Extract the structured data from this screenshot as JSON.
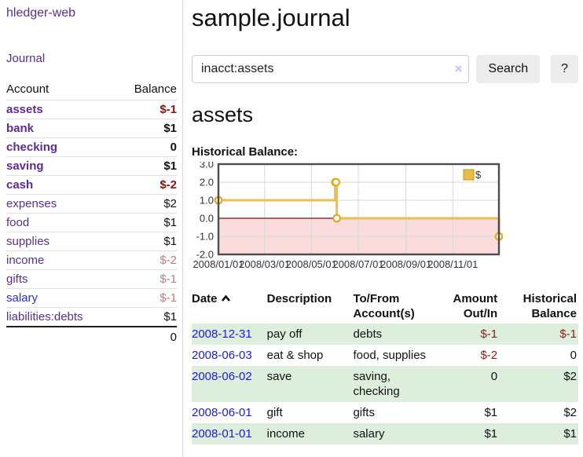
{
  "sidebar": {
    "app_title": "hledger-web",
    "journal_label": "Journal",
    "table": {
      "account_header": "Account",
      "balance_header": "Balance",
      "rows": [
        {
          "account": "assets",
          "balance": "$-1",
          "depth": 1,
          "bold": true,
          "balance_tone": "neg-strong",
          "link_tone": "purple"
        },
        {
          "account": "bank",
          "balance": "$1",
          "depth": 2,
          "bold": true,
          "balance_tone": "normal",
          "link_tone": "purple"
        },
        {
          "account": "checking",
          "balance": "0",
          "depth": 3,
          "bold": true,
          "balance_tone": "normal",
          "link_tone": "purple"
        },
        {
          "account": "saving",
          "balance": "$1",
          "depth": 3,
          "bold": true,
          "balance_tone": "normal",
          "link_tone": "purple"
        },
        {
          "account": "cash",
          "balance": "$-2",
          "depth": 2,
          "bold": true,
          "balance_tone": "neg-strong",
          "link_tone": "purple"
        },
        {
          "account": "expenses",
          "balance": "$2",
          "depth": 1,
          "bold": false,
          "balance_tone": "normal",
          "link_tone": "purple"
        },
        {
          "account": "food",
          "balance": "$1",
          "depth": 2,
          "bold": false,
          "balance_tone": "normal",
          "link_tone": "purple"
        },
        {
          "account": "supplies",
          "balance": "$1",
          "depth": 2,
          "bold": false,
          "balance_tone": "normal",
          "link_tone": "purple"
        },
        {
          "account": "income",
          "balance": "$-2",
          "depth": 1,
          "bold": false,
          "balance_tone": "neg-soft",
          "link_tone": "purple"
        },
        {
          "account": "gifts",
          "balance": "$-1",
          "depth": 2,
          "bold": false,
          "balance_tone": "neg-soft",
          "link_tone": "purple"
        },
        {
          "account": "salary",
          "balance": "$-1",
          "depth": 2,
          "bold": false,
          "balance_tone": "neg-soft",
          "link_tone": "blue"
        },
        {
          "account": "liabilities:debts",
          "balance": "$1",
          "depth": 1,
          "bold": false,
          "balance_tone": "normal",
          "link_tone": "purple"
        }
      ],
      "total": "0"
    }
  },
  "main": {
    "title": "sample.journal",
    "search": {
      "value": "inacct:assets",
      "clear_icon": "×",
      "button_label": "Search",
      "help_label": "?"
    },
    "account_heading": "assets",
    "chart_heading": "Historical Balance:"
  },
  "chart_data": {
    "type": "line",
    "step": true,
    "title": "Historical Balance",
    "ylim": [
      -2,
      3
    ],
    "xlim_days": [
      0,
      365
    ],
    "grid": true,
    "legend": {
      "label": "$",
      "position": "top-right"
    },
    "yticks": [
      {
        "value": 3,
        "label": "3.0"
      },
      {
        "value": 2,
        "label": "2.0"
      },
      {
        "value": 1,
        "label": "1.0"
      },
      {
        "value": 0,
        "label": "0.0"
      },
      {
        "value": -1,
        "label": "-1.0"
      },
      {
        "value": -2,
        "label": "-2.0"
      }
    ],
    "xticks": [
      {
        "day": 0,
        "label": "2008/01/01"
      },
      {
        "day": 60,
        "label": "2008/03/01"
      },
      {
        "day": 121,
        "label": "2008/05/01"
      },
      {
        "day": 182,
        "label": "2008/07/01"
      },
      {
        "day": 244,
        "label": "2008/09/01"
      },
      {
        "day": 305,
        "label": "2008/11/01"
      }
    ],
    "series": [
      {
        "name": "$",
        "points": [
          {
            "day": 0,
            "date": "2008-01-01",
            "value": 1
          },
          {
            "day": 152,
            "date": "2008-06-01",
            "value": 2
          },
          {
            "day": 153,
            "date": "2008-06-02",
            "value": 2
          },
          {
            "day": 154,
            "date": "2008-06-03",
            "value": 0
          },
          {
            "day": 365,
            "date": "2008-12-31",
            "value": -1
          }
        ]
      }
    ],
    "colors": {
      "line": "#e9c04d",
      "marker_stroke": "#dcab28",
      "marker_fill": "#ffffff",
      "negative_fill": "#fbdcdc",
      "zero_line": "#7b0c0c",
      "grid_line": "#d7d7d7",
      "border": "#4d4d4d",
      "legend_fill": "#e7be3f",
      "legend_border": "#b8922a"
    }
  },
  "register": {
    "headers": [
      "Date",
      "Description",
      "To/From Account(s)",
      "Amount Out/In",
      "Historical Balance"
    ],
    "rows": [
      {
        "date": "2008-12-31",
        "description": "pay off",
        "accounts": "debts",
        "amount": "$-1",
        "amount_negative": true,
        "balance": "$-1",
        "balance_negative": true
      },
      {
        "date": "2008-06-03",
        "description": "eat & shop",
        "accounts": "food, supplies",
        "amount": "$-2",
        "amount_negative": true,
        "balance": "0",
        "balance_negative": false
      },
      {
        "date": "2008-06-02",
        "description": "save",
        "accounts": "saving, checking",
        "amount": "0",
        "amount_negative": false,
        "balance": "$2",
        "balance_negative": false
      },
      {
        "date": "2008-06-01",
        "description": "gift",
        "accounts": "gifts",
        "amount": "$1",
        "amount_negative": false,
        "balance": "$2",
        "balance_negative": false
      },
      {
        "date": "2008-01-01",
        "description": "income",
        "accounts": "salary",
        "amount": "$1",
        "amount_negative": false,
        "balance": "$1",
        "balance_negative": false
      }
    ]
  }
}
